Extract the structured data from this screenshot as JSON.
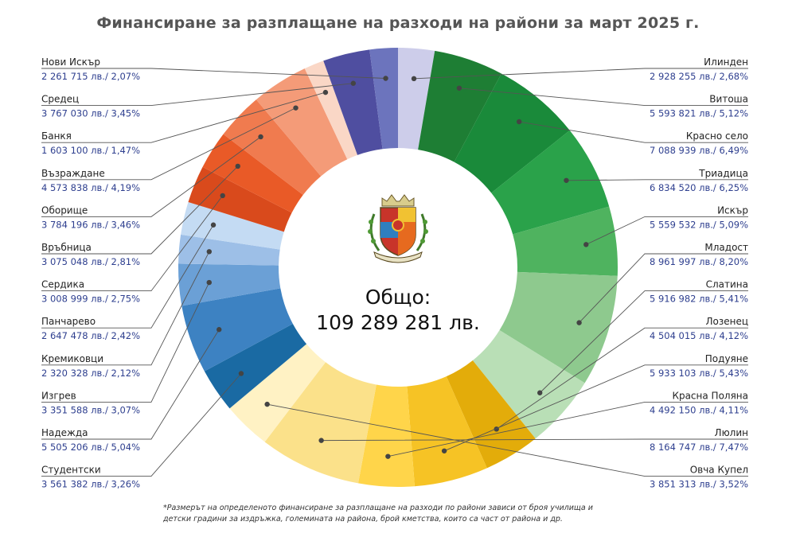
{
  "chart_data": {
    "type": "pie",
    "title": "Финансиране за разплащане на разходи на райони за март 2025 г.",
    "total_label": "Общо:",
    "total_value": "109 289 281 лв.",
    "footnote": "*Размерът на определеното финансиране за разплащане на разходи по райони зависи от броя училища и детски градини за издръжка, големината на района, брой кметства, които са част от района и др.",
    "emblem": "sofia-coat-of-arms-icon",
    "slices": [
      {
        "name": "Илинден",
        "value_text": "2 928 255 лв./ 2,68%",
        "value": 2928255,
        "percent": 2.68,
        "color": "#cdcdea",
        "side": "right"
      },
      {
        "name": "Витоша",
        "value_text": "5 593 821 лв./ 5,12%",
        "value": 5593821,
        "percent": 5.12,
        "color": "#1e7e34",
        "side": "right"
      },
      {
        "name": "Красно село",
        "value_text": "7 088 939 лв./ 6,49%",
        "value": 7088939,
        "percent": 6.49,
        "color": "#1a8a3a",
        "side": "right"
      },
      {
        "name": "Триадица",
        "value_text": "6 834 520 лв./ 6,25%",
        "value": 6834520,
        "percent": 6.25,
        "color": "#2aa24a",
        "side": "right"
      },
      {
        "name": "Искър",
        "value_text": "5 559 532 лв./ 5,09%",
        "value": 5559532,
        "percent": 5.09,
        "color": "#4fb35f",
        "side": "right"
      },
      {
        "name": "Младост",
        "value_text": "8 961 997 лв./ 8,20%",
        "value": 8961997,
        "percent": 8.2,
        "color": "#8ec98e",
        "side": "right"
      },
      {
        "name": "Слатина",
        "value_text": "5 916 982 лв./ 5,41%",
        "value": 5916982,
        "percent": 5.41,
        "color": "#b9dfb6",
        "side": "right"
      },
      {
        "name": "Лозенец",
        "value_text": "4 504 015 лв./ 4,12%",
        "value": 4504015,
        "percent": 4.12,
        "color": "#e3ac0a",
        "side": "right"
      },
      {
        "name": "Подуяне",
        "value_text": "5 933 103 лв./ 5,43%",
        "value": 5933103,
        "percent": 5.43,
        "color": "#f6c325",
        "side": "right"
      },
      {
        "name": "Красна Поляна",
        "value_text": "4 492 150 лв./ 4,11%",
        "value": 4492150,
        "percent": 4.11,
        "color": "#ffd54a",
        "side": "right"
      },
      {
        "name": "Люлин",
        "value_text": "8 164 747 лв./ 7,47%",
        "value": 8164747,
        "percent": 7.47,
        "color": "#fbe18a",
        "side": "right"
      },
      {
        "name": "Овча Купел",
        "value_text": "3 851 313 лв./ 3,52%",
        "value": 3851313,
        "percent": 3.52,
        "color": "#fff2c4",
        "side": "right"
      },
      {
        "name": "Студентски",
        "value_text": "3 561 382 лв./ 3,26%",
        "value": 3561382,
        "percent": 3.26,
        "color": "#1a6aa3",
        "side": "left"
      },
      {
        "name": "Надежда",
        "value_text": "5 505 206 лв./ 5,04%",
        "value": 5505206,
        "percent": 5.04,
        "color": "#3d82c2",
        "side": "left"
      },
      {
        "name": "Изгрев",
        "value_text": "3 351 588 лв./ 3,07%",
        "value": 3351588,
        "percent": 3.07,
        "color": "#6ba0d6",
        "side": "left"
      },
      {
        "name": "Кремиковци",
        "value_text": "2 320 328 лв./ 2,12%",
        "value": 2320328,
        "percent": 2.12,
        "color": "#9dbfe7",
        "side": "left"
      },
      {
        "name": "Панчарево",
        "value_text": "2 647 478 лв./ 2,42%",
        "value": 2647478,
        "percent": 2.42,
        "color": "#c4dbf3",
        "side": "left"
      },
      {
        "name": "Сердика",
        "value_text": "3 008 999 лв./ 2,75%",
        "value": 3008999,
        "percent": 2.75,
        "color": "#d94a1c",
        "side": "left"
      },
      {
        "name": "Връбница",
        "value_text": "3 075 048 лв./ 2,81%",
        "value": 3075048,
        "percent": 2.81,
        "color": "#e95a27",
        "side": "left"
      },
      {
        "name": "Оборище",
        "value_text": "3 784 196 лв./ 3,46%",
        "value": 3784196,
        "percent": 3.46,
        "color": "#f07b4f",
        "side": "left"
      },
      {
        "name": "Възраждане",
        "value_text": "4 573 838 лв./ 4,19%",
        "value": 4573838,
        "percent": 4.19,
        "color": "#f49b78",
        "side": "left"
      },
      {
        "name": "Банкя",
        "value_text": "1 603 100 лв./ 1,47%",
        "value": 1603100,
        "percent": 1.47,
        "color": "#fad7c6",
        "side": "left"
      },
      {
        "name": "Средец",
        "value_text": "3 767 030 лв./ 3,45%",
        "value": 3767030,
        "percent": 3.45,
        "color": "#4f4ea0",
        "side": "left"
      },
      {
        "name": "Нови Искър",
        "value_text": "2 261 715 лв./ 2,07%",
        "value": 2261715,
        "percent": 2.07,
        "color": "#6c74bd",
        "side": "left"
      }
    ]
  }
}
